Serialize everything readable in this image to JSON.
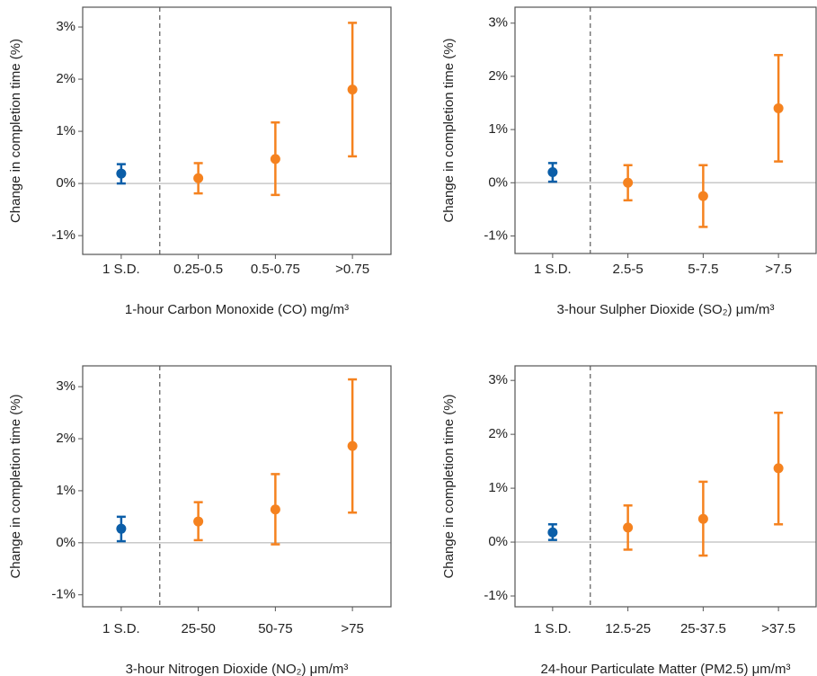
{
  "chart_data": [
    {
      "type": "errorbar",
      "x_label": "1-hour Carbon Monoxide (CO) mg/m³",
      "y_label": "Change in completion time (%)",
      "categories": [
        "1 S.D.",
        "0.25-0.5",
        "0.5-0.75",
        ">0.75"
      ],
      "values": [
        0.19,
        0.1,
        0.47,
        1.8
      ],
      "lower": [
        0.0,
        -0.19,
        -0.22,
        0.52
      ],
      "upper": [
        0.37,
        0.39,
        1.17,
        3.08
      ],
      "colors": [
        "#0b5ea8",
        "#f5821f",
        "#f5821f",
        "#f5821f"
      ],
      "ylim": [
        -1.36,
        3.38
      ],
      "yticks": [
        {
          "value": -1,
          "label": "-1%"
        },
        {
          "value": 0,
          "label": "0%"
        },
        {
          "value": 1,
          "label": "1%"
        },
        {
          "value": 2,
          "label": "2%"
        },
        {
          "value": 3,
          "label": "3%"
        }
      ]
    },
    {
      "type": "errorbar",
      "x_label": "3-hour Sulpher Dioxide (SO₂) μm/m³",
      "y_label": "Change in completion time (%)",
      "categories": [
        "1 S.D.",
        "2.5-5",
        "5-7.5",
        ">7.5"
      ],
      "values": [
        0.2,
        0.0,
        -0.25,
        1.4
      ],
      "lower": [
        0.02,
        -0.33,
        -0.83,
        0.4
      ],
      "upper": [
        0.37,
        0.33,
        0.33,
        2.4
      ],
      "colors": [
        "#0b5ea8",
        "#f5821f",
        "#f5821f",
        "#f5821f"
      ],
      "ylim": [
        -1.33,
        3.3
      ],
      "yticks": [
        {
          "value": -1,
          "label": "-1%"
        },
        {
          "value": 0,
          "label": "0%"
        },
        {
          "value": 1,
          "label": "1%"
        },
        {
          "value": 2,
          "label": "2%"
        },
        {
          "value": 3,
          "label": "3%"
        }
      ]
    },
    {
      "type": "errorbar",
      "x_label": "3-hour Nitrogen Dioxide (NO₂) μm/m³",
      "y_label": "Change in completion time (%)",
      "categories": [
        "1 S.D.",
        "25-50",
        "50-75",
        ">75"
      ],
      "values": [
        0.27,
        0.41,
        0.64,
        1.86
      ],
      "lower": [
        0.03,
        0.05,
        -0.03,
        0.58
      ],
      "upper": [
        0.5,
        0.78,
        1.32,
        3.14
      ],
      "colors": [
        "#0b5ea8",
        "#f5821f",
        "#f5821f",
        "#f5821f"
      ],
      "ylim": [
        -1.23,
        3.4
      ],
      "yticks": [
        {
          "value": -1,
          "label": "-1%"
        },
        {
          "value": 0,
          "label": "0%"
        },
        {
          "value": 1,
          "label": "1%"
        },
        {
          "value": 2,
          "label": "2%"
        },
        {
          "value": 3,
          "label": "3%"
        }
      ]
    },
    {
      "type": "errorbar",
      "x_label": "24-hour Particulate Matter (PM2.5) μm/m³",
      "y_label": "Change in completion time (%)",
      "categories": [
        "1 S.D.",
        "12.5-25",
        "25-37.5",
        ">37.5"
      ],
      "values": [
        0.18,
        0.27,
        0.43,
        1.37
      ],
      "lower": [
        0.04,
        -0.14,
        -0.25,
        0.33
      ],
      "upper": [
        0.33,
        0.68,
        1.12,
        2.4
      ],
      "colors": [
        "#0b5ea8",
        "#f5821f",
        "#f5821f",
        "#f5821f"
      ],
      "ylim": [
        -1.2,
        3.27
      ],
      "yticks": [
        {
          "value": -1,
          "label": "-1%"
        },
        {
          "value": 0,
          "label": "0%"
        },
        {
          "value": 1,
          "label": "1%"
        },
        {
          "value": 2,
          "label": "2%"
        },
        {
          "value": 3,
          "label": "3%"
        }
      ]
    }
  ]
}
